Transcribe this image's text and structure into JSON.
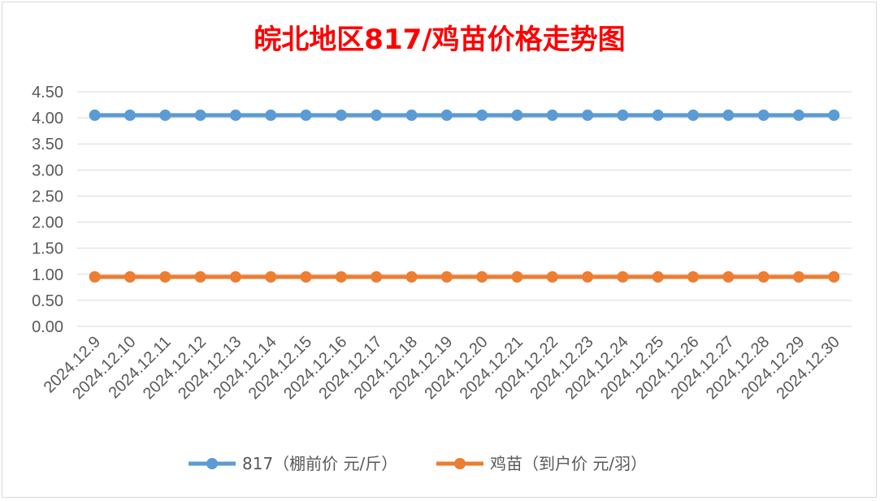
{
  "chart_data": {
    "type": "line",
    "title": "皖北地区817/鸡苗价格走势图",
    "title_color": "#ff0000",
    "categories": [
      "2024.12.9",
      "2024.12.10",
      "2024.12.11",
      "2024.12.12",
      "2024.12.13",
      "2024.12.14",
      "2024.12.15",
      "2024.12.16",
      "2024.12.17",
      "2024.12.18",
      "2024.12.19",
      "2024.12.20",
      "2024.12.21",
      "2024.12.22",
      "2024.12.23",
      "2024.12.24",
      "2024.12.25",
      "2024.12.26",
      "2024.12.27",
      "2024.12.28",
      "2024.12.29",
      "2024.12.30"
    ],
    "series": [
      {
        "name": "817（棚前价 元/斤）",
        "color": "#5b9bd5",
        "values": [
          4.05,
          4.05,
          4.05,
          4.05,
          4.05,
          4.05,
          4.05,
          4.05,
          4.05,
          4.05,
          4.05,
          4.05,
          4.05,
          4.05,
          4.05,
          4.05,
          4.05,
          4.05,
          4.05,
          4.05,
          4.05,
          4.05
        ]
      },
      {
        "name": "鸡苗（到户价 元/羽）",
        "color": "#ed7d31",
        "values": [
          0.95,
          0.95,
          0.95,
          0.95,
          0.95,
          0.95,
          0.95,
          0.95,
          0.95,
          0.95,
          0.95,
          0.95,
          0.95,
          0.95,
          0.95,
          0.95,
          0.95,
          0.95,
          0.95,
          0.95,
          0.95,
          0.95
        ]
      }
    ],
    "ylim": [
      0,
      4.5
    ],
    "yticks": [
      "0.00",
      "0.50",
      "1.00",
      "1.50",
      "2.00",
      "2.50",
      "3.00",
      "3.50",
      "4.00",
      "4.50"
    ],
    "grid": true,
    "legend_position": "bottom"
  }
}
